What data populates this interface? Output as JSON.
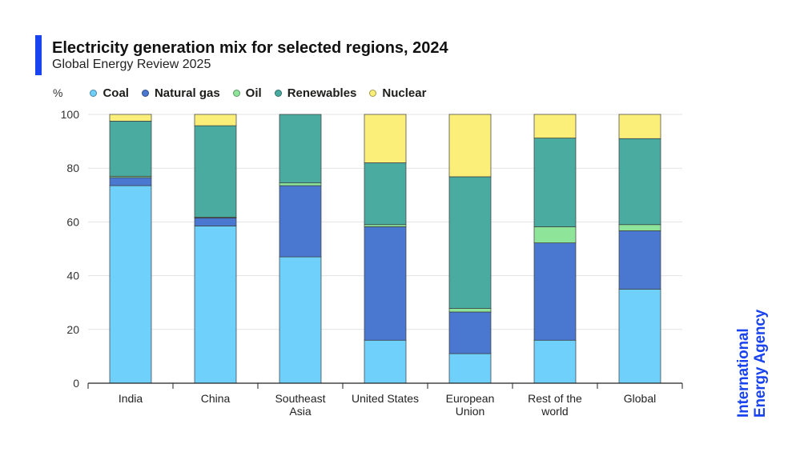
{
  "header": {
    "title": "Electricity generation mix for selected regions, 2024",
    "subtitle": "Global Energy Review 2025"
  },
  "legend": {
    "unit": "%",
    "items": [
      {
        "label": "Coal",
        "color": "#6fd0fb"
      },
      {
        "label": "Natural gas",
        "color": "#4a78d0"
      },
      {
        "label": "Oil",
        "color": "#8ee59a"
      },
      {
        "label": "Renewables",
        "color": "#4aaba1"
      },
      {
        "label": "Nuclear",
        "color": "#fbef79"
      }
    ]
  },
  "logo": {
    "line1": "International",
    "line2": "Energy Agency",
    "color": "#1a43f0"
  },
  "accent_color": "#1a43f0",
  "chart_data": {
    "type": "bar",
    "stacked": true,
    "title": "Electricity generation mix for selected regions, 2024",
    "ylabel": "%",
    "ylim": [
      0,
      100
    ],
    "yticks": [
      0,
      20,
      40,
      60,
      80,
      100
    ],
    "grid": true,
    "legend_position": "top-left",
    "categories": [
      [
        "India"
      ],
      [
        "China"
      ],
      [
        "Southeast",
        "Asia"
      ],
      [
        "United States"
      ],
      [
        "European",
        "Union"
      ],
      [
        "Rest of the",
        "world"
      ],
      [
        "Global"
      ]
    ],
    "series": [
      {
        "name": "Coal",
        "color": "#6fd0fb",
        "values": [
          73.5,
          58.5,
          47,
          16,
          11,
          16,
          35
        ]
      },
      {
        "name": "Natural gas",
        "color": "#4a78d0",
        "values": [
          3,
          3,
          26.5,
          42.2,
          15.5,
          36.2,
          21.7
        ]
      },
      {
        "name": "Oil",
        "color": "#8ee59a",
        "values": [
          0.5,
          0.3,
          1,
          0.8,
          1.3,
          6,
          2.3
        ]
      },
      {
        "name": "Renewables",
        "color": "#4aaba1",
        "values": [
          20.5,
          34,
          25.5,
          23,
          49,
          33,
          32
        ]
      },
      {
        "name": "Nuclear",
        "color": "#fbef79",
        "values": [
          2.5,
          4.2,
          0,
          18,
          23.2,
          8.8,
          9
        ]
      }
    ]
  }
}
